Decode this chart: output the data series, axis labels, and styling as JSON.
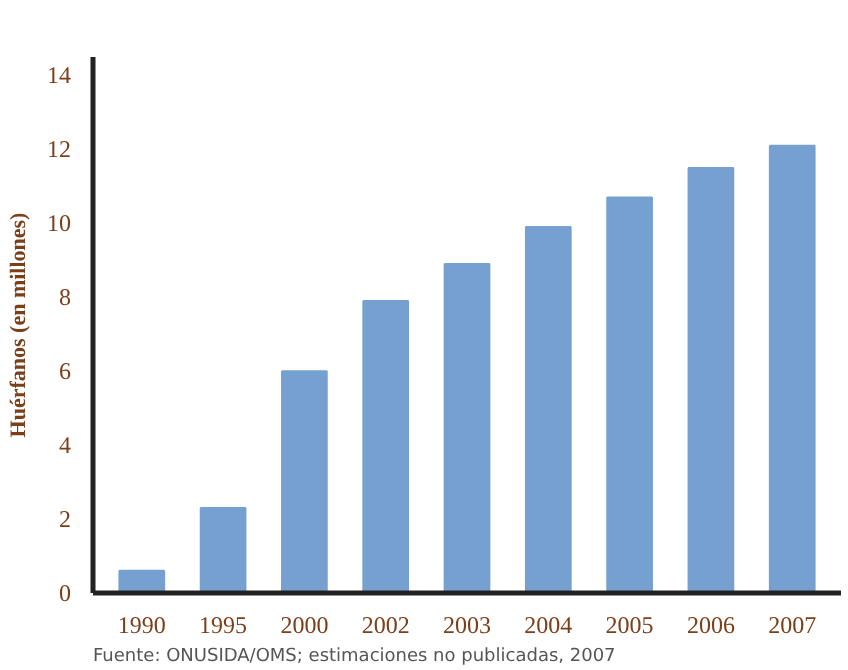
{
  "chart_data": {
    "type": "bar",
    "ylabel": "Huérfanos (en millones)",
    "categories": [
      "1990",
      "1995",
      "2000",
      "2002",
      "2003",
      "2004",
      "2005",
      "2006",
      "2007"
    ],
    "values": [
      0.6,
      2.3,
      6.0,
      7.9,
      8.9,
      9.9,
      10.7,
      11.5,
      12.1
    ],
    "color": "#75a0cf",
    "ylim": [
      0,
      14.5
    ],
    "yticks": [
      0,
      2,
      4,
      6,
      8,
      10,
      12,
      14
    ],
    "grid": false,
    "annotations": [
      "Fuente: ONUSIDA/OMS; estimaciones no publicadas, 2007"
    ]
  }
}
